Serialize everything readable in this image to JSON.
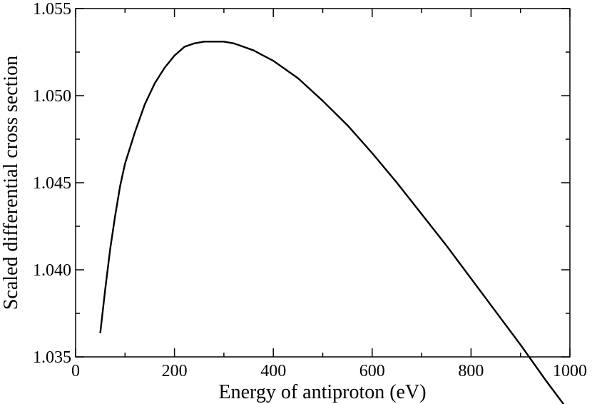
{
  "chart_data": {
    "type": "line",
    "title": "",
    "xlabel": "Energy of antiproton (eV)",
    "ylabel": "Scaled differential cross section",
    "xlim": [
      0,
      1000
    ],
    "ylim": [
      1.035,
      1.055
    ],
    "x_ticks": [
      "0",
      "200",
      "400",
      "600",
      "800",
      "1000"
    ],
    "x_tick_values": [
      0,
      200,
      400,
      600,
      800,
      1000
    ],
    "y_ticks": [
      "1.035",
      "1.040",
      "1.045",
      "1.050",
      "1.055"
    ],
    "y_tick_values": [
      1.035,
      1.04,
      1.045,
      1.05,
      1.055
    ],
    "grid": false,
    "legend": "none",
    "line_color": "#000000",
    "series": [
      {
        "x": [
          50,
          60,
          70,
          80,
          90,
          100,
          120,
          140,
          160,
          180,
          200,
          220,
          240,
          260,
          280,
          300,
          320,
          340,
          360,
          380,
          400,
          450,
          500,
          550,
          600,
          650,
          700,
          750,
          800,
          850,
          900,
          950,
          1000
        ],
        "values": [
          1.0364,
          1.0389,
          1.0412,
          1.0431,
          1.0448,
          1.0461,
          1.0479,
          1.0495,
          1.0507,
          1.0516,
          1.0523,
          1.0528,
          1.053,
          1.0531,
          1.0531,
          1.0531,
          1.053,
          1.0528,
          1.0526,
          1.0523,
          1.052,
          1.051,
          1.0497,
          1.0483,
          1.0467,
          1.045,
          1.0432,
          1.0414,
          1.0395,
          1.0376,
          1.0357,
          1.0337,
          1.0318
        ]
      }
    ]
  }
}
